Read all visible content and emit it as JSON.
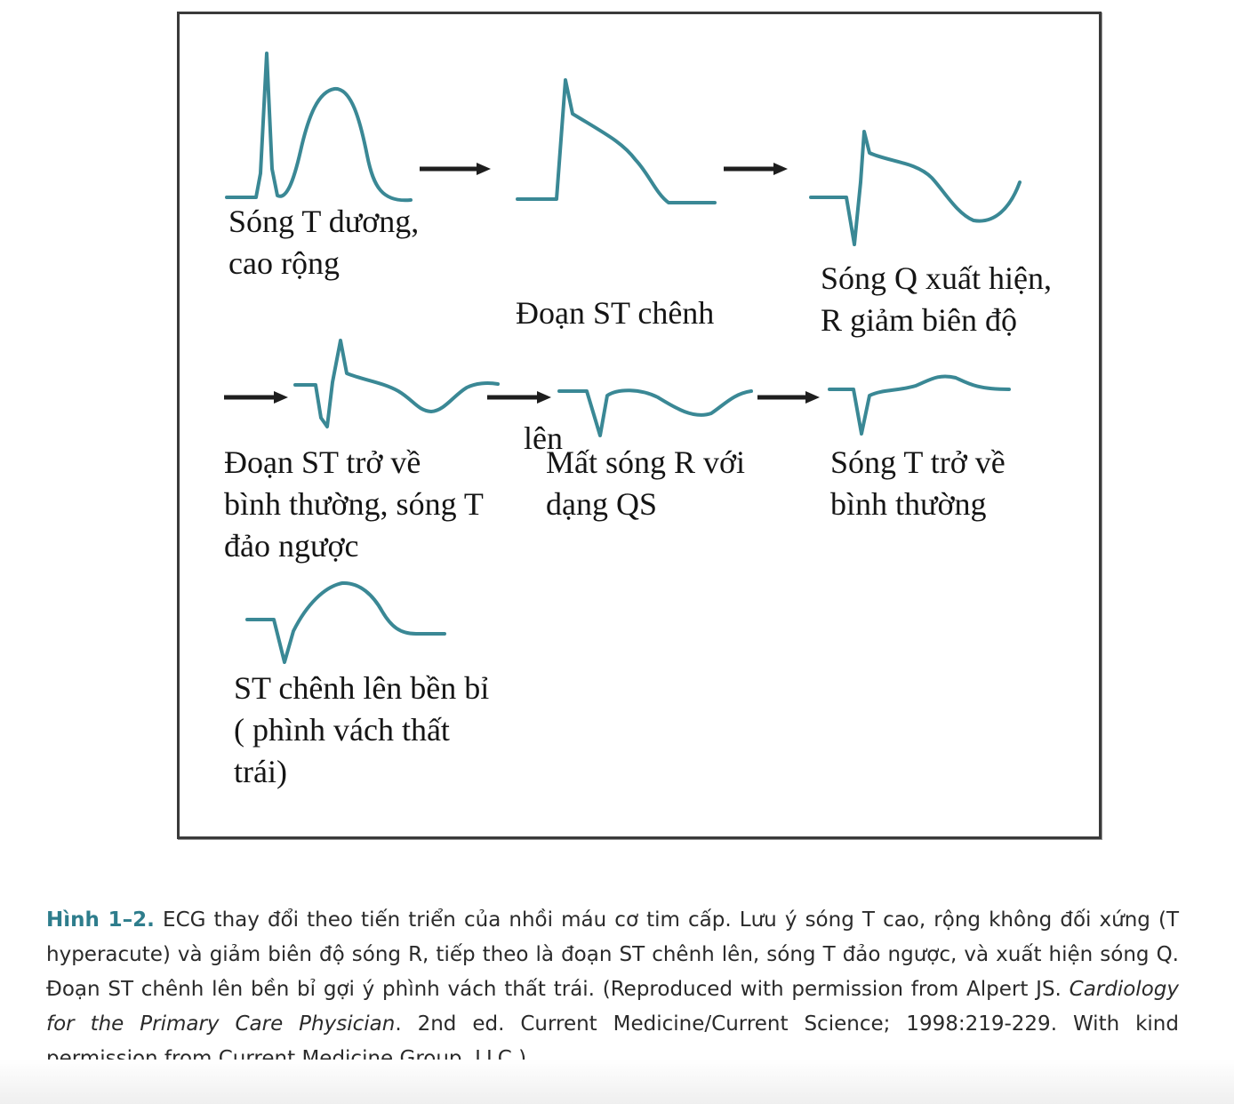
{
  "figure": {
    "panels": [
      {
        "lines": [
          "Sóng T dương,",
          "cao rộng"
        ]
      },
      {
        "lines": [
          "Đoạn ST chênh",
          " lên"
        ]
      },
      {
        "lines": [
          "Sóng Q xuất hiện,",
          "R giảm biên độ"
        ]
      },
      {
        "lines": [
          "Đoạn ST trở về",
          "bình thường, sóng T",
          "đảo ngược"
        ]
      },
      {
        "lines": [
          "Mất sóng R với",
          "dạng QS"
        ]
      },
      {
        "lines": [
          "Sóng T trở về",
          "bình thường"
        ]
      },
      {
        "lines": [
          "ST chênh lên bền bỉ",
          "( phình vách thất",
          "trái)"
        ]
      }
    ],
    "trace_color": "#3a8895",
    "arrow_color": "#1e1e1e"
  },
  "caption": {
    "label": "Hình 1–2.",
    "text_1": " ECG thay đổi theo tiến triển của nhồi máu cơ tim cấp. Lưu ý sóng T cao, rộng không đối xứng (T hyperacute) và giảm biên độ sóng R, tiếp theo là đoạn ST chênh lên, sóng T đảo ngược, và xuất hiện sóng Q. Đoạn ST chênh lên bền bỉ gợi ý phình vách thất trái. (Reproduced with permission from Alpert JS. ",
    "book_title": "Cardiology for the Primary Care Physician",
    "text_2": ". 2nd ed. Current Medicine/Current Science; 1998:219-229. With kind permission from Current Medicine Group, LLC.)",
    "label_color": "#2e7d8c"
  }
}
